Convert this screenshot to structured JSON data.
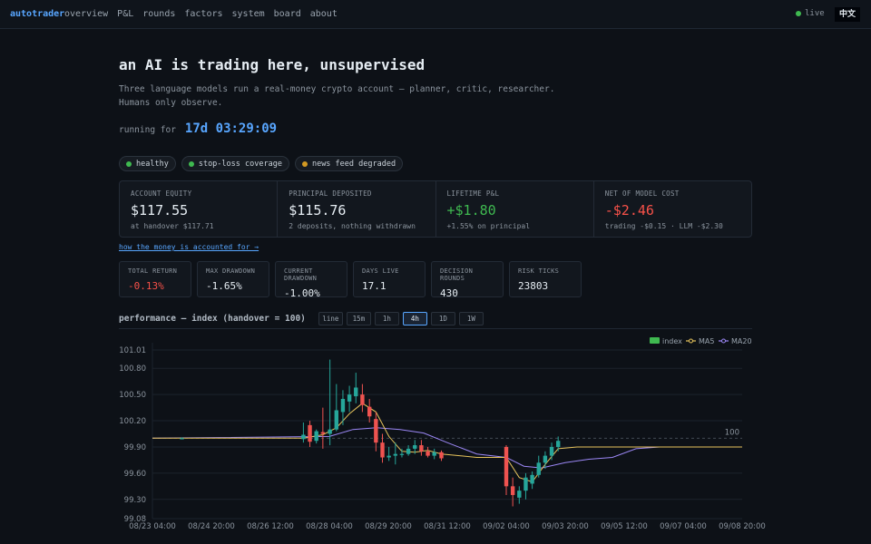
{
  "nav": {
    "brand": "autotrader",
    "links": [
      "overview",
      "P&L",
      "rounds",
      "factors",
      "system",
      "board",
      "about"
    ],
    "status": "live",
    "lang": "中文"
  },
  "hero": {
    "title": "an AI is trading here, unsupervised",
    "subtitle_line1": "Three language models run a real-money crypto account — planner, critic, researcher.",
    "subtitle_line2": "Humans only observe.",
    "running_label": "running for",
    "running_value": "17d 03:29:09"
  },
  "pills": [
    {
      "label": "healthy",
      "color": "#3fb950"
    },
    {
      "label": "stop-loss coverage",
      "color": "#3fb950"
    },
    {
      "label": "news feed degraded",
      "color": "#d29922"
    }
  ],
  "stats": [
    {
      "key": "ACCOUNT EQUITY",
      "value": "$117.55",
      "sub": "at handover $117.71",
      "color": "#e6edf3"
    },
    {
      "key": "PRINCIPAL DEPOSITED",
      "value": "$115.76",
      "sub": "2 deposits, nothing withdrawn",
      "color": "#e6edf3"
    },
    {
      "key": "LIFETIME P&L",
      "value": "+$1.80",
      "sub": "+1.55% on principal",
      "color": "#3fb950"
    },
    {
      "key": "NET OF MODEL COST",
      "value": "-$2.46",
      "sub": "trading -$0.15 · LLM -$2.30",
      "color": "#f85149"
    }
  ],
  "accounting_link": "how the money is accounted for →",
  "small_stats": [
    {
      "key": "TOTAL RETURN",
      "value": "-0.13%",
      "color": "#f85149"
    },
    {
      "key": "MAX DRAWDOWN",
      "value": "-1.65%",
      "color": "#e6edf3"
    },
    {
      "key": "CURRENT DRAWDOWN",
      "value": "-1.00%",
      "color": "#e6edf3"
    },
    {
      "key": "DAYS LIVE",
      "value": "17.1",
      "color": "#e6edf3"
    },
    {
      "key": "DECISION ROUNDS",
      "value": "430",
      "color": "#e6edf3"
    },
    {
      "key": "RISK TICKS",
      "value": "23803",
      "color": "#e6edf3"
    }
  ],
  "chart_header": {
    "title": "performance — index (handover = 100)",
    "timeframes": [
      "line",
      "15m",
      "1h",
      "4h",
      "1D",
      "1W"
    ],
    "active": "4h"
  },
  "colors": {
    "up": "#26a69a",
    "down": "#ef5350",
    "ma5": "#e6c35c",
    "ma20": "#9b87f5",
    "index_legend": "#3fb950",
    "accent": "#58a6ff"
  },
  "chart_data": {
    "type": "candlestick",
    "title": "performance — index (handover = 100)",
    "y_ticks": [
      101.01,
      100.8,
      100.5,
      100.2,
      99.9,
      99.6,
      99.3,
      99.08
    ],
    "ylim": [
      99.08,
      101.01
    ],
    "x_ticks": [
      "08/23 04:00",
      "08/24 20:00",
      "08/26 12:00",
      "08/28 04:00",
      "08/29 20:00",
      "08/31 12:00",
      "09/02 04:00",
      "09/03 20:00",
      "09/05 12:00",
      "09/07 04:00",
      "09/08 20:00"
    ],
    "baseline": 100,
    "baseline_label": "100",
    "legend": [
      "index",
      "MA5",
      "MA20"
    ],
    "candles": [
      {
        "x": 5,
        "o": 100.0,
        "h": 100.01,
        "l": 99.99,
        "c": 100.0
      },
      {
        "x": 25.6,
        "o": 99.99,
        "h": 100.18,
        "l": 99.95,
        "c": 100.04
      },
      {
        "x": 26.7,
        "o": 100.15,
        "h": 100.2,
        "l": 99.9,
        "c": 99.96
      },
      {
        "x": 27.8,
        "o": 99.97,
        "h": 100.1,
        "l": 99.94,
        "c": 100.08
      },
      {
        "x": 28.9,
        "o": 100.07,
        "h": 100.35,
        "l": 99.88,
        "c": 100.05
      },
      {
        "x": 30.1,
        "o": 100.05,
        "h": 100.9,
        "l": 99.92,
        "c": 100.1
      },
      {
        "x": 31.2,
        "o": 100.1,
        "h": 100.62,
        "l": 100.08,
        "c": 100.32
      },
      {
        "x": 32.3,
        "o": 100.3,
        "h": 100.55,
        "l": 100.15,
        "c": 100.45
      },
      {
        "x": 33.4,
        "o": 100.42,
        "h": 100.6,
        "l": 100.3,
        "c": 100.5
      },
      {
        "x": 34.5,
        "o": 100.48,
        "h": 100.75,
        "l": 100.4,
        "c": 100.58
      },
      {
        "x": 35.6,
        "o": 100.5,
        "h": 100.62,
        "l": 100.3,
        "c": 100.38
      },
      {
        "x": 36.8,
        "o": 100.36,
        "h": 100.45,
        "l": 100.18,
        "c": 100.25
      },
      {
        "x": 37.9,
        "o": 100.22,
        "h": 100.3,
        "l": 99.85,
        "c": 99.95
      },
      {
        "x": 39.0,
        "o": 99.95,
        "h": 100.05,
        "l": 99.72,
        "c": 99.78
      },
      {
        "x": 40.1,
        "o": 99.78,
        "h": 99.9,
        "l": 99.74,
        "c": 99.8
      },
      {
        "x": 41.2,
        "o": 99.8,
        "h": 99.95,
        "l": 99.7,
        "c": 99.82
      },
      {
        "x": 42.3,
        "o": 99.82,
        "h": 99.88,
        "l": 99.78,
        "c": 99.82
      },
      {
        "x": 43.4,
        "o": 99.82,
        "h": 99.92,
        "l": 99.8,
        "c": 99.88
      },
      {
        "x": 44.5,
        "o": 99.88,
        "h": 99.98,
        "l": 99.82,
        "c": 99.92
      },
      {
        "x": 45.6,
        "o": 99.92,
        "h": 99.98,
        "l": 99.8,
        "c": 99.85
      },
      {
        "x": 46.7,
        "o": 99.85,
        "h": 99.9,
        "l": 99.78,
        "c": 99.8
      },
      {
        "x": 47.8,
        "o": 99.8,
        "h": 99.88,
        "l": 99.76,
        "c": 99.84
      },
      {
        "x": 49.0,
        "o": 99.84,
        "h": 99.86,
        "l": 99.74,
        "c": 99.77
      },
      {
        "x": 60.0,
        "o": 99.9,
        "h": 99.92,
        "l": 99.35,
        "c": 99.45
      },
      {
        "x": 61.1,
        "o": 99.45,
        "h": 99.55,
        "l": 99.22,
        "c": 99.35
      },
      {
        "x": 62.2,
        "o": 99.32,
        "h": 99.45,
        "l": 99.25,
        "c": 99.4
      },
      {
        "x": 63.3,
        "o": 99.4,
        "h": 99.6,
        "l": 99.3,
        "c": 99.55
      },
      {
        "x": 64.4,
        "o": 99.48,
        "h": 99.62,
        "l": 99.42,
        "c": 99.58
      },
      {
        "x": 65.5,
        "o": 99.58,
        "h": 99.8,
        "l": 99.55,
        "c": 99.72
      },
      {
        "x": 66.6,
        "o": 99.72,
        "h": 99.85,
        "l": 99.65,
        "c": 99.8
      },
      {
        "x": 67.7,
        "o": 99.8,
        "h": 99.95,
        "l": 99.75,
        "c": 99.9
      },
      {
        "x": 68.8,
        "o": 99.9,
        "h": 100.02,
        "l": 99.85,
        "c": 99.97
      }
    ],
    "ma5": [
      {
        "x": 0,
        "y": 100.0
      },
      {
        "x": 25.6,
        "y": 100.0
      },
      {
        "x": 28.9,
        "y": 100.04
      },
      {
        "x": 31.2,
        "y": 100.12
      },
      {
        "x": 33.4,
        "y": 100.28
      },
      {
        "x": 35.6,
        "y": 100.4
      },
      {
        "x": 37.9,
        "y": 100.3
      },
      {
        "x": 40.1,
        "y": 100.02
      },
      {
        "x": 42.3,
        "y": 99.85
      },
      {
        "x": 44.5,
        "y": 99.84
      },
      {
        "x": 46.7,
        "y": 99.86
      },
      {
        "x": 49.0,
        "y": 99.82
      },
      {
        "x": 55.0,
        "y": 99.78
      },
      {
        "x": 60.0,
        "y": 99.78
      },
      {
        "x": 62.2,
        "y": 99.55
      },
      {
        "x": 64.4,
        "y": 99.5
      },
      {
        "x": 66.6,
        "y": 99.7
      },
      {
        "x": 68.8,
        "y": 99.88
      },
      {
        "x": 72.0,
        "y": 99.9
      },
      {
        "x": 100,
        "y": 99.9
      }
    ],
    "ma20": [
      {
        "x": 0,
        "y": 100.0
      },
      {
        "x": 30.0,
        "y": 100.02
      },
      {
        "x": 34.0,
        "y": 100.1
      },
      {
        "x": 38.0,
        "y": 100.12
      },
      {
        "x": 42.0,
        "y": 100.1
      },
      {
        "x": 46.0,
        "y": 100.06
      },
      {
        "x": 50.0,
        "y": 99.95
      },
      {
        "x": 55.0,
        "y": 99.82
      },
      {
        "x": 60.0,
        "y": 99.78
      },
      {
        "x": 63.0,
        "y": 99.68
      },
      {
        "x": 66.0,
        "y": 99.66
      },
      {
        "x": 70.0,
        "y": 99.72
      },
      {
        "x": 74.0,
        "y": 99.76
      },
      {
        "x": 78.0,
        "y": 99.78
      },
      {
        "x": 82.0,
        "y": 99.88
      },
      {
        "x": 86.0,
        "y": 99.9
      },
      {
        "x": 100,
        "y": 99.9
      }
    ]
  }
}
